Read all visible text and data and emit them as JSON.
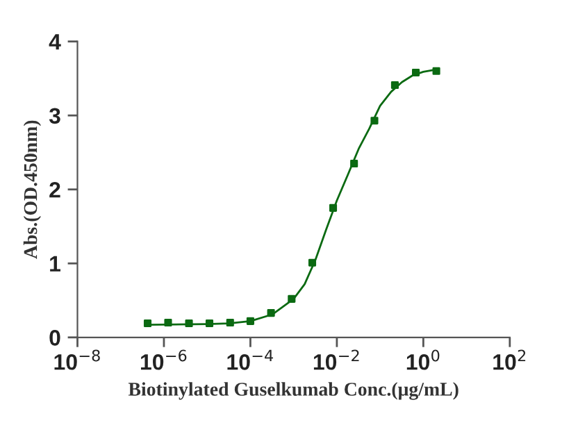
{
  "chart_data": {
    "type": "scatter",
    "xlabel": "Biotinylated Guselkumab Conc.(μg/mL)",
    "ylabel": "Abs.(OD.450nm)",
    "log": "x",
    "grid": false,
    "legend": false,
    "xlim": [
      1e-08,
      100
    ],
    "xticks": [
      {
        "value": 1e-08,
        "label": "10$^{−8}$"
      },
      {
        "value": 1e-06,
        "label": "10$^{−6}$"
      },
      {
        "value": 0.0001,
        "label": "10$^{−4}$"
      },
      {
        "value": 0.01,
        "label": "10$^{−2}$"
      },
      {
        "value": 1,
        "label": "10$^{0}$"
      },
      {
        "value": 100,
        "label": "10$^{2}$"
      }
    ],
    "ylim": [
      0,
      4
    ],
    "yticks": [
      0,
      1,
      2,
      3,
      4
    ],
    "series": [
      {
        "marker": "square",
        "color": "#0b6a12",
        "x": [
          4.2e-07,
          1.25e-06,
          3.8e-06,
          1.13e-05,
          3.4e-05,
          0.0001,
          0.0003,
          0.0009,
          0.0027,
          0.0082,
          0.025,
          0.074,
          0.22,
          0.67,
          2
        ],
        "values": [
          0.19,
          0.2,
          0.19,
          0.19,
          0.2,
          0.22,
          0.33,
          0.52,
          1.01,
          1.75,
          2.35,
          2.93,
          3.41,
          3.58,
          3.6
        ]
      },
      {
        "type": "line",
        "marker": "none",
        "line_style": "solid",
        "color": "#0b6a12",
        "x": [
          4.2e-07,
          1e-05,
          3.2e-05,
          0.0001,
          0.00032,
          0.001,
          0.0018,
          0.0032,
          0.0056,
          0.01,
          0.018,
          0.032,
          0.056,
          0.1,
          0.18,
          0.32,
          0.56,
          1,
          2
        ],
        "values": [
          0.17,
          0.18,
          0.19,
          0.22,
          0.31,
          0.52,
          0.72,
          1.05,
          1.45,
          1.85,
          2.2,
          2.55,
          2.82,
          3.13,
          3.32,
          3.45,
          3.54,
          3.59,
          3.62
        ]
      }
    ]
  }
}
